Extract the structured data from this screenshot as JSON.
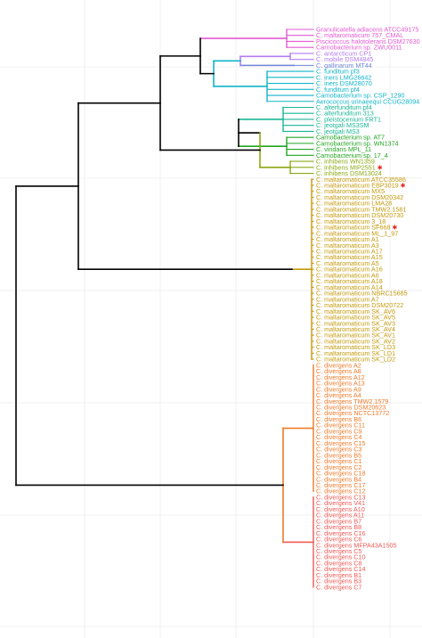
{
  "tree": {
    "clades": [
      {
        "name": "magenta",
        "color": "#e35ad1",
        "leaves": [
          "Granulicatella adiacens ATCC49175",
          "C. maltaromaticum 757_CMAL",
          "Piscicoccus halotolerans DSM27630",
          "Carnobacterium sp. ZWU0011"
        ]
      },
      {
        "name": "purple",
        "color": "#b27df0",
        "leaves": [
          "C. antarcticum CP1",
          "C. mobile DSM4845"
        ]
      },
      {
        "name": "blue",
        "color": "#6f86d6",
        "leaves": [
          "C. gallinarum MT44"
        ]
      },
      {
        "name": "cyan",
        "color": "#11b4c9",
        "leaves": [
          "C. funditum pf3",
          "C. iners LMG26642",
          "C. iners DSM28070",
          "C. funditum pf4",
          "Carnobacterium sp. CSP_1290",
          "Aerococcus urinaeequi CCUG28094"
        ]
      },
      {
        "name": "teal",
        "color": "#19b595",
        "leaves": [
          "C. alterfunditum pf4",
          "C. alterfunditum 313",
          "C. pleistocenium FRT1",
          "C. jeotgali MS3SM",
          "C. jeotgali MS3"
        ]
      },
      {
        "name": "green",
        "color": "#22a522",
        "leaves": [
          "Carnobacterium sp. AT7",
          "Carnobacterium sp. WN1374",
          "C. viridans MPL_11",
          "Carnobacterium sp. 17_4"
        ]
      },
      {
        "name": "olive",
        "color": "#8ca815",
        "leaves": [
          "C. inhibens WN1359",
          "C. inhibens MIP2551",
          "C. inhibens DSM13024"
        ]
      },
      {
        "name": "gold",
        "color": "#c49a0c",
        "leaves": [
          "C. maltaromaticum ATCC35586",
          "C. maltaromaticum EBP3019",
          "C. maltaromaticum MX5",
          "C. maltaromaticum DSM20342",
          "C. maltaromaticum LMA28",
          "C. maltaromaticum TMW2.1581",
          "C. maltaromaticum DSM20730",
          "C. maltaromaticum 3_18",
          "C. maltaromaticum SF668",
          "C. maltaromaticum ML_1_97",
          "C. maltaromaticum A1",
          "C. maltaromaticum A3",
          "C. maltaromaticum A17",
          "C. maltaromaticum A15",
          "C. maltaromaticum A5",
          "C. maltaromaticum A16",
          "C. maltaromaticum A6",
          "C. maltaromaticum A18",
          "C. maltaromaticum A14",
          "C. maltaromaticum NBRC15685",
          "C. maltaromaticum A7",
          "C. maltaromaticum DSM20722",
          "C. maltaromaticum SK_AV6",
          "C. maltaromaticum SK_AV5",
          "C. maltaromaticum SK_AV3",
          "C. maltaromaticum SK_AV4",
          "C. maltaromaticum SK_AV1",
          "C. maltaromaticum SK_AV2",
          "C. maltaromaticum SK_LD3",
          "C. maltaromaticum SK_LD1",
          "C. maltaromaticum SK_LD2"
        ]
      },
      {
        "name": "orange",
        "color": "#ef7b2a",
        "leaves": [
          "C. divergens A2",
          "C. divergens A8",
          "C. divergens A12",
          "C. divergens A13",
          "C. divergens A9",
          "C. divergens A4",
          "C. divergens TMW2.1579",
          "C. divergens DSM20623",
          "C. divergens NCTC13772",
          "C. divergens B6",
          "C. divergens C11",
          "C. divergens C9",
          "C. divergens C4",
          "C. divergens C15",
          "C. divergens C3",
          "C. divergens B5",
          "C. divergens C1",
          "C. divergens C2",
          "C. divergens C18",
          "C. divergens B4",
          "C. divergens C17",
          "C. divergens C12"
        ]
      },
      {
        "name": "red",
        "color": "#ee5a55",
        "leaves": [
          "C. divergens C13",
          "C. divergens V41",
          "C. divergens A10",
          "C. divergens A11",
          "C. divergens B7",
          "C. divergens B8",
          "C. divergens C16",
          "C. divergens C6",
          "C. divergens MFPA43A1505",
          "C. divergens C5",
          "C. divergens C10",
          "C. divergens C8",
          "C. divergens C14",
          "C. divergens B1",
          "C. divergens B3",
          "C. divergens C7"
        ]
      }
    ],
    "marked_leaves": [
      "C. inhibens MIP2551",
      "C. maltaromaticum EBP3019",
      "C. maltaromaticum SF668"
    ],
    "marker_symbol": "✱",
    "marker_color": "#e8231e",
    "backbone_color": "#000000"
  }
}
